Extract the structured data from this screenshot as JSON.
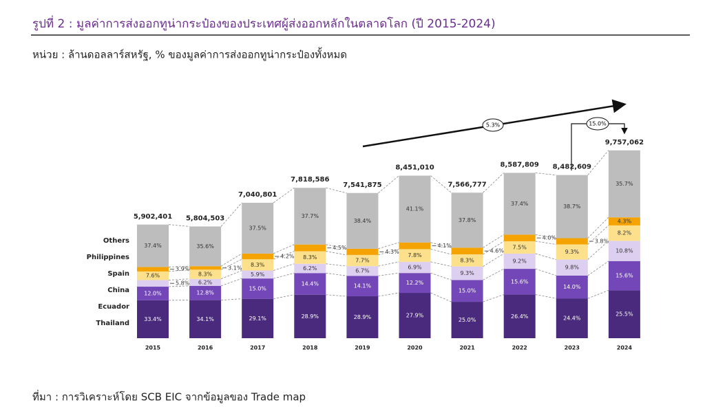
{
  "header": {
    "title": "รูปที่ 2 : มูลค่าการส่งออกทูน่ากระป๋องของประเทศผู้ส่งออกหลักในตลาดโลก (ปี 2015-2024)",
    "unit": "หน่วย : ล้านดอลลาร์สหรัฐ, % ของมูลค่าการส่งออกทูน่ากระป๋องทั้งหมด"
  },
  "footer": {
    "source": "ที่มา : การวิเคราะห์โดย SCB EIC จากข้อมูลของ Trade map"
  },
  "chart_data": {
    "type": "stacked_bar",
    "categories": [
      "2015",
      "2016",
      "2017",
      "2018",
      "2019",
      "2020",
      "2021",
      "2022",
      "2023",
      "2024"
    ],
    "totals": {
      "values": [
        5902401,
        5804503,
        7040801,
        7818586,
        7541875,
        8451010,
        7566777,
        8587809,
        8482609,
        9757062
      ],
      "value_labels": [
        "5,902,401",
        "5,804,503",
        "7,040,801",
        "7,818,586",
        "7,541,875",
        "8,451,010",
        "7,566,777",
        "8,587,809",
        "8,482,609",
        "9,757,062"
      ]
    },
    "series": [
      {
        "name": "Thailand",
        "color": "#4a2a7d",
        "values": [
          33.4,
          34.1,
          29.1,
          28.9,
          28.9,
          27.9,
          25.0,
          26.4,
          24.4,
          25.5
        ],
        "value_labels": [
          "33.4%",
          "34.1%",
          "29.1%",
          "28.9%",
          "28.9%",
          "27.9%",
          "25.0%",
          "26.4%",
          "24.4%",
          "25.5%"
        ]
      },
      {
        "name": "Ecuador",
        "color": "#7447b8",
        "values": [
          12.0,
          12.8,
          15.0,
          14.4,
          14.1,
          12.2,
          15.0,
          15.6,
          14.0,
          15.6
        ],
        "value_labels": [
          "12.0%",
          "12.8%",
          "15.0%",
          "14.4%",
          "14.1%",
          "12.2%",
          "15.0%",
          "15.6%",
          "14.0%",
          "15.6%"
        ]
      },
      {
        "name": "China",
        "color": "#dccff0",
        "values": [
          5.8,
          6.2,
          5.9,
          6.2,
          6.7,
          6.9,
          9.3,
          9.2,
          9.8,
          10.8
        ],
        "value_labels": [
          "5.8%",
          "6.2%",
          "5.9%",
          "6.2%",
          "6.7%",
          "6.9%",
          "9.3%",
          "9.2%",
          "9.8%",
          "10.8%"
        ]
      },
      {
        "name": "Spain",
        "color": "#fde08c",
        "values": [
          7.6,
          8.3,
          8.3,
          8.3,
          7.7,
          7.8,
          8.3,
          7.5,
          9.3,
          8.2
        ],
        "value_labels": [
          "7.6%",
          "8.3%",
          "8.3%",
          "8.3%",
          "7.7%",
          "7.8%",
          "8.3%",
          "7.5%",
          "9.3%",
          "8.2%"
        ]
      },
      {
        "name": "Philippines",
        "color": "#f5a300",
        "values": [
          3.9,
          3.1,
          4.2,
          4.5,
          4.3,
          4.1,
          4.6,
          4.0,
          3.8,
          4.3
        ],
        "value_labels": [
          "3.9%",
          "3.1%",
          "4.2%",
          "4.5%",
          "4.3%",
          "4.1%",
          "4.6%",
          "4.0%",
          "3.8%",
          "4.3%"
        ]
      },
      {
        "name": "Others",
        "color": "#bdbdbd",
        "values": [
          37.4,
          35.6,
          37.5,
          37.7,
          38.4,
          41.1,
          37.8,
          37.4,
          38.7,
          35.7
        ],
        "value_labels": [
          "37.4%",
          "35.6%",
          "37.5%",
          "37.7%",
          "38.4%",
          "41.1%",
          "37.8%",
          "37.4%",
          "38.7%",
          "35.7%"
        ]
      }
    ],
    "annotations": [
      "5.3%",
      "15.0%"
    ]
  }
}
